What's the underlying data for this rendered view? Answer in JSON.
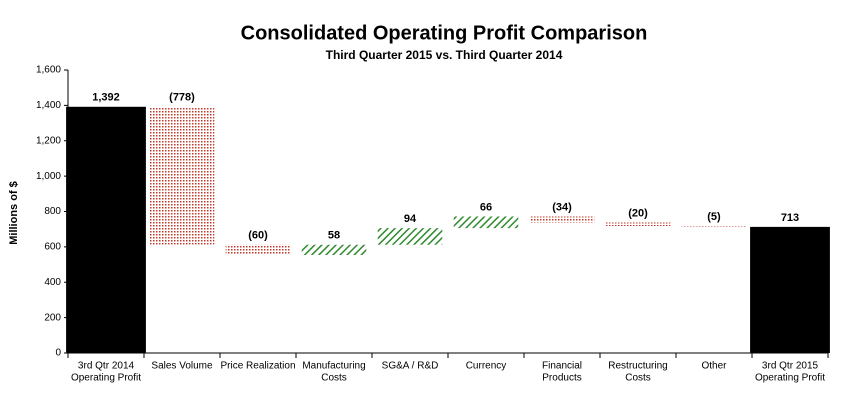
{
  "chart_data": {
    "type": "waterfall",
    "title": "Consolidated Operating Profit Comparison",
    "subtitle": "Third Quarter 2015 vs. Third Quarter 2014",
    "y_label": "Millions of $",
    "categories": [
      [
        "3rd Qtr 2014",
        "Operating Profit"
      ],
      [
        "Sales Volume"
      ],
      [
        "Price Realization"
      ],
      [
        "Manufacturing",
        "Costs"
      ],
      [
        "SG&A / R&D"
      ],
      [
        "Currency"
      ],
      [
        "Financial",
        "Products"
      ],
      [
        "Restructuring",
        "Costs"
      ],
      [
        "Other"
      ],
      [
        "3rd Qtr 2015",
        "Operating Profit"
      ]
    ],
    "values": [
      1392,
      -778,
      -60,
      58,
      94,
      66,
      -34,
      -20,
      -5,
      713
    ],
    "value_labels": [
      "1,392",
      "(778)",
      "(60)",
      "58",
      "94",
      "66",
      "(34)",
      "(20)",
      "(5)",
      "713"
    ],
    "total_color": "#000000",
    "increase_color": "#2e8b2e",
    "decrease_color": "#c0392b",
    "ylim": [
      0,
      1600
    ],
    "yticks": [
      0,
      200,
      400,
      600,
      800,
      {
        "value": 1000,
        "label": "1,000"
      },
      {
        "value": 1200,
        "label": "1,200"
      },
      {
        "value": 1400,
        "label": "1,400"
      },
      {
        "value": 1600,
        "label": "1,600"
      }
    ],
    "grid": false
  }
}
